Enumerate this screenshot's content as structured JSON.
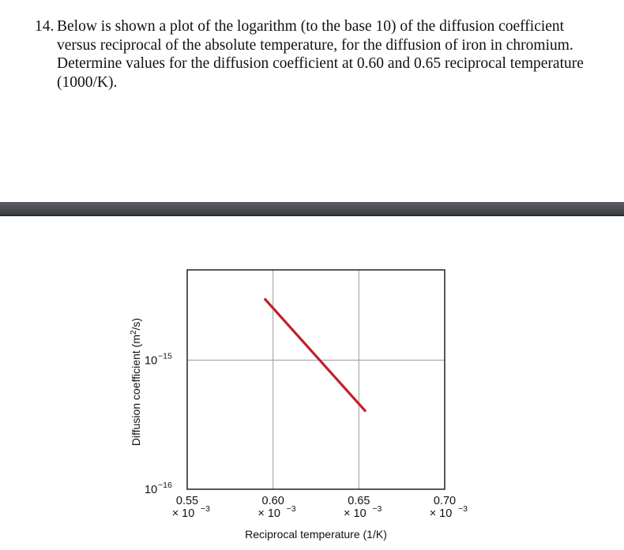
{
  "question": {
    "number": "14.",
    "text": "Below is shown a plot of the logarithm (to the base 10) of the diffusion coefficient versus reciprocal of the absolute temperature, for the diffusion of iron in chromium. Determine values for the diffusion coefficient at 0.60 and 0.65 reciprocal temperature (1000/K)."
  },
  "chart_data": {
    "type": "line",
    "xlabel": "Reciprocal temperature (1/K)",
    "ylabel": "Diffusion coefficient (m²/s)",
    "x_ticks": [
      {
        "value": 0.00055,
        "label": "0.55",
        "multiplier": "× 10",
        "exp": "−3"
      },
      {
        "value": 0.0006,
        "label": "0.60",
        "multiplier": "× 10",
        "exp": "−3"
      },
      {
        "value": 0.00065,
        "label": "0.65",
        "multiplier": "× 10",
        "exp": "−3"
      },
      {
        "value": 0.0007,
        "label": "0.70",
        "multiplier": "× 10",
        "exp": "−3"
      }
    ],
    "y_ticks": [
      {
        "value": 1e-16,
        "base": "10",
        "exp": "−16"
      },
      {
        "value": 1e-15,
        "base": "10",
        "exp": "−15"
      }
    ],
    "xlim": [
      0.00055,
      0.0007
    ],
    "ylim": [
      1e-16,
      5e-15
    ],
    "yscale": "log",
    "grid": true,
    "series": [
      {
        "color": "#c0202a",
        "x": [
          0.000595,
          0.000654
        ],
        "y": [
          3e-15,
          4e-16
        ]
      }
    ]
  }
}
